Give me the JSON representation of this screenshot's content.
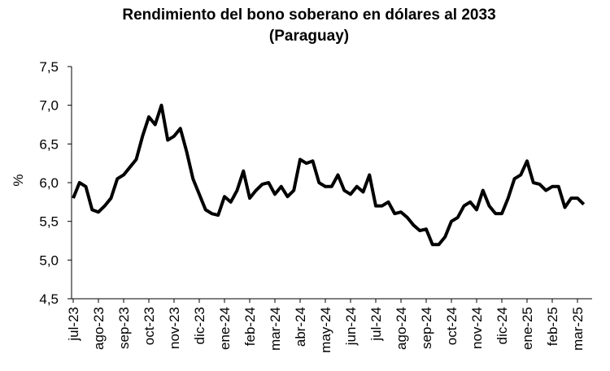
{
  "chart_data": {
    "type": "line",
    "title": "Rendimiento del bono soberano en dólares al 2033",
    "subtitle": "(Paraguay)",
    "y_label": "%",
    "x": [
      "jul-23",
      "jul-23",
      "jul-23",
      "jul-23",
      "ago-23",
      "ago-23",
      "ago-23",
      "ago-23",
      "sep-23",
      "sep-23",
      "sep-23",
      "sep-23",
      "oct-23",
      "oct-23",
      "oct-23",
      "oct-23",
      "nov-23",
      "nov-23",
      "nov-23",
      "nov-23",
      "dic-23",
      "dic-23",
      "dic-23",
      "dic-23",
      "ene-24",
      "ene-24",
      "ene-24",
      "ene-24",
      "feb-24",
      "feb-24",
      "feb-24",
      "feb-24",
      "mar-24",
      "mar-24",
      "mar-24",
      "mar-24",
      "abr-24",
      "abr-24",
      "abr-24",
      "abr-24",
      "may-24",
      "may-24",
      "may-24",
      "may-24",
      "jun-24",
      "jun-24",
      "jun-24",
      "jun-24",
      "jul-24",
      "jul-24",
      "jul-24",
      "jul-24",
      "ago-24",
      "ago-24",
      "ago-24",
      "ago-24",
      "sep-24",
      "sep-24",
      "sep-24",
      "sep-24",
      "oct-24",
      "oct-24",
      "oct-24",
      "oct-24",
      "nov-24",
      "nov-24",
      "nov-24",
      "nov-24",
      "dic-24",
      "dic-24",
      "dic-24",
      "dic-24",
      "ene-25",
      "ene-25",
      "ene-25",
      "ene-25",
      "feb-25",
      "feb-25",
      "feb-25",
      "feb-25",
      "mar-25",
      "mar-25"
    ],
    "series": [
      {
        "name": "Rendimiento",
        "color": "#000000",
        "values": [
          5.8,
          6.0,
          5.95,
          5.65,
          5.62,
          5.7,
          5.8,
          6.05,
          6.1,
          6.2,
          6.3,
          6.6,
          6.85,
          6.75,
          7.0,
          6.55,
          6.6,
          6.7,
          6.4,
          6.05,
          5.85,
          5.65,
          5.6,
          5.58,
          5.82,
          5.75,
          5.9,
          6.15,
          5.8,
          5.9,
          5.98,
          6.0,
          5.85,
          5.95,
          5.82,
          5.9,
          6.3,
          6.25,
          6.28,
          6.0,
          5.95,
          5.95,
          6.1,
          5.9,
          5.85,
          5.95,
          5.88,
          6.1,
          5.7,
          5.7,
          5.75,
          5.6,
          5.62,
          5.55,
          5.45,
          5.38,
          5.4,
          5.2,
          5.2,
          5.3,
          5.5,
          5.55,
          5.7,
          5.75,
          5.65,
          5.9,
          5.7,
          5.6,
          5.6,
          5.8,
          6.05,
          6.1,
          6.28,
          6.0,
          5.98,
          5.9,
          5.95,
          5.95,
          5.68,
          5.8,
          5.8,
          5.72
        ]
      }
    ],
    "xticks": [
      "jul-23",
      "ago-23",
      "sep-23",
      "oct-23",
      "nov-23",
      "dic-23",
      "ene-24",
      "feb-24",
      "mar-24",
      "abr-24",
      "may-24",
      "jun-24",
      "jul-24",
      "ago-24",
      "sep-24",
      "oct-24",
      "nov-24",
      "dic-24",
      "ene-25",
      "feb-25",
      "mar-25"
    ],
    "ylim": [
      4.5,
      7.5
    ],
    "yticks": [
      {
        "value": 4.5,
        "label": "4,5"
      },
      {
        "value": 5.0,
        "label": "5,0"
      },
      {
        "value": 5.5,
        "label": "5,5"
      },
      {
        "value": 6.0,
        "label": "6,0"
      },
      {
        "value": 6.5,
        "label": "6,5"
      },
      {
        "value": 7.0,
        "label": "7,0"
      },
      {
        "value": 7.5,
        "label": "7,5"
      }
    ],
    "grid": false
  }
}
